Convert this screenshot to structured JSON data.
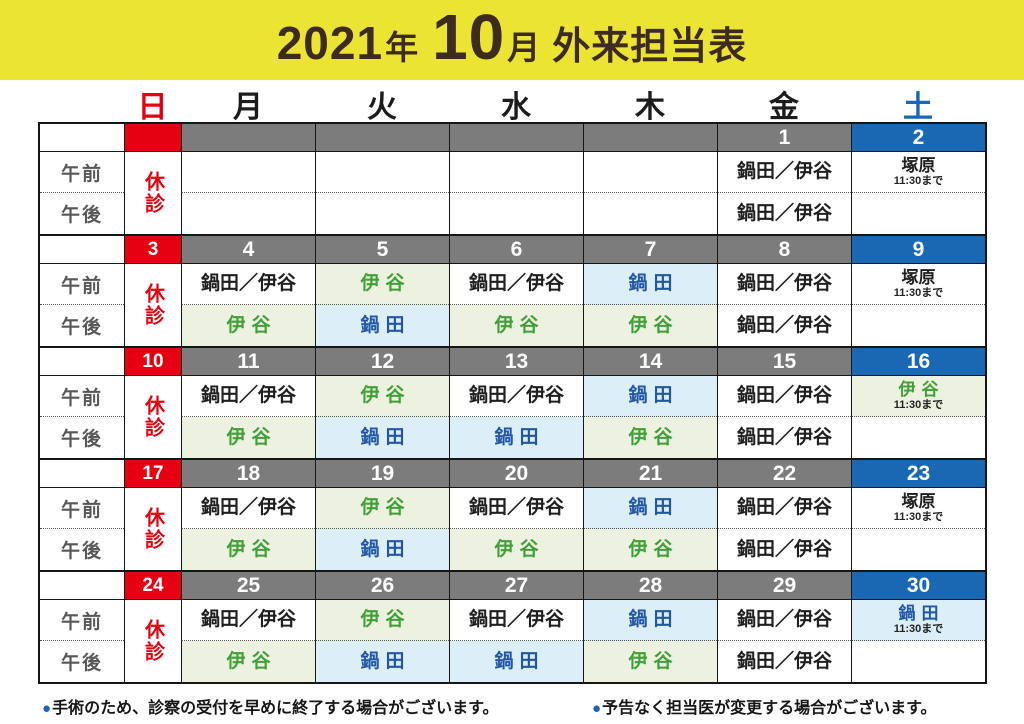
{
  "title": {
    "year": "2021",
    "year_unit": "年",
    "month": "10",
    "month_unit": "月",
    "label": "外来担当表"
  },
  "days": [
    "日",
    "月",
    "火",
    "水",
    "木",
    "金",
    "土"
  ],
  "labels": {
    "am": "午前",
    "pm": "午後",
    "closed": "休診"
  },
  "colors": {
    "banner_bg": "#ece433",
    "title_text": "#3e2b20",
    "sunday_red": "#e50012",
    "weekday_gray": "#7d7c7c",
    "saturday_blue": "#1a68b4",
    "green_text": "#3fa037",
    "green_bg": "#edf2e0",
    "blue_text": "#2257a8",
    "blue_bg": "#dceef8",
    "time_label_gray": "#595757",
    "footnote_bullet_blue": "#2063ae"
  },
  "weeks": [
    {
      "dates": [
        "",
        "",
        "",
        "",
        "",
        "1",
        "2"
      ],
      "am": [
        {
          "text": ""
        },
        {
          "text": ""
        },
        {
          "text": ""
        },
        {
          "text": ""
        },
        {
          "text": "鍋田／伊谷",
          "style": "plain"
        },
        {
          "text": "塚原",
          "style": "plain",
          "note": "11:30まで"
        }
      ],
      "pm": [
        {
          "text": ""
        },
        {
          "text": ""
        },
        {
          "text": ""
        },
        {
          "text": ""
        },
        {
          "text": "鍋田／伊谷",
          "style": "plain"
        },
        {
          "text": ""
        }
      ]
    },
    {
      "dates": [
        "3",
        "4",
        "5",
        "6",
        "7",
        "8",
        "9"
      ],
      "am": [
        {
          "text": "鍋田／伊谷",
          "style": "plain"
        },
        {
          "text": "伊谷",
          "style": "green"
        },
        {
          "text": "鍋田／伊谷",
          "style": "plain"
        },
        {
          "text": "鍋田",
          "style": "blue"
        },
        {
          "text": "鍋田／伊谷",
          "style": "plain"
        },
        {
          "text": "塚原",
          "style": "plain",
          "note": "11:30まで"
        }
      ],
      "pm": [
        {
          "text": "伊谷",
          "style": "green"
        },
        {
          "text": "鍋田",
          "style": "blue"
        },
        {
          "text": "伊谷",
          "style": "green"
        },
        {
          "text": "伊谷",
          "style": "green"
        },
        {
          "text": "鍋田／伊谷",
          "style": "plain"
        },
        {
          "text": ""
        }
      ]
    },
    {
      "dates": [
        "10",
        "11",
        "12",
        "13",
        "14",
        "15",
        "16"
      ],
      "am": [
        {
          "text": "鍋田／伊谷",
          "style": "plain"
        },
        {
          "text": "伊谷",
          "style": "green"
        },
        {
          "text": "鍋田／伊谷",
          "style": "plain"
        },
        {
          "text": "鍋田",
          "style": "blue"
        },
        {
          "text": "鍋田／伊谷",
          "style": "plain"
        },
        {
          "text": "伊谷",
          "style": "green",
          "note": "11:30まで"
        }
      ],
      "pm": [
        {
          "text": "伊谷",
          "style": "green"
        },
        {
          "text": "鍋田",
          "style": "blue"
        },
        {
          "text": "鍋田",
          "style": "blue"
        },
        {
          "text": "伊谷",
          "style": "green"
        },
        {
          "text": "鍋田／伊谷",
          "style": "plain"
        },
        {
          "text": ""
        }
      ]
    },
    {
      "dates": [
        "17",
        "18",
        "19",
        "20",
        "21",
        "22",
        "23"
      ],
      "am": [
        {
          "text": "鍋田／伊谷",
          "style": "plain"
        },
        {
          "text": "伊谷",
          "style": "green"
        },
        {
          "text": "鍋田／伊谷",
          "style": "plain"
        },
        {
          "text": "鍋田",
          "style": "blue"
        },
        {
          "text": "鍋田／伊谷",
          "style": "plain"
        },
        {
          "text": "塚原",
          "style": "plain",
          "note": "11:30まで"
        }
      ],
      "pm": [
        {
          "text": "伊谷",
          "style": "green"
        },
        {
          "text": "鍋田",
          "style": "blue"
        },
        {
          "text": "伊谷",
          "style": "green"
        },
        {
          "text": "伊谷",
          "style": "green"
        },
        {
          "text": "鍋田／伊谷",
          "style": "plain"
        },
        {
          "text": ""
        }
      ]
    },
    {
      "dates": [
        "24",
        "25",
        "26",
        "27",
        "28",
        "29",
        "30"
      ],
      "am": [
        {
          "text": "鍋田／伊谷",
          "style": "plain"
        },
        {
          "text": "伊谷",
          "style": "green"
        },
        {
          "text": "鍋田／伊谷",
          "style": "plain"
        },
        {
          "text": "鍋田",
          "style": "blue"
        },
        {
          "text": "鍋田／伊谷",
          "style": "plain"
        },
        {
          "text": "鍋田",
          "style": "blue",
          "note": "11:30まで"
        }
      ],
      "pm": [
        {
          "text": "伊谷",
          "style": "green"
        },
        {
          "text": "鍋田",
          "style": "blue"
        },
        {
          "text": "鍋田",
          "style": "blue"
        },
        {
          "text": "伊谷",
          "style": "green"
        },
        {
          "text": "鍋田／伊谷",
          "style": "plain"
        },
        {
          "text": ""
        }
      ]
    }
  ],
  "footnotes": [
    "手術のため、診察の受付を早めに終了する場合がございます。",
    "予告なく担当医が変更する場合がございます。"
  ]
}
